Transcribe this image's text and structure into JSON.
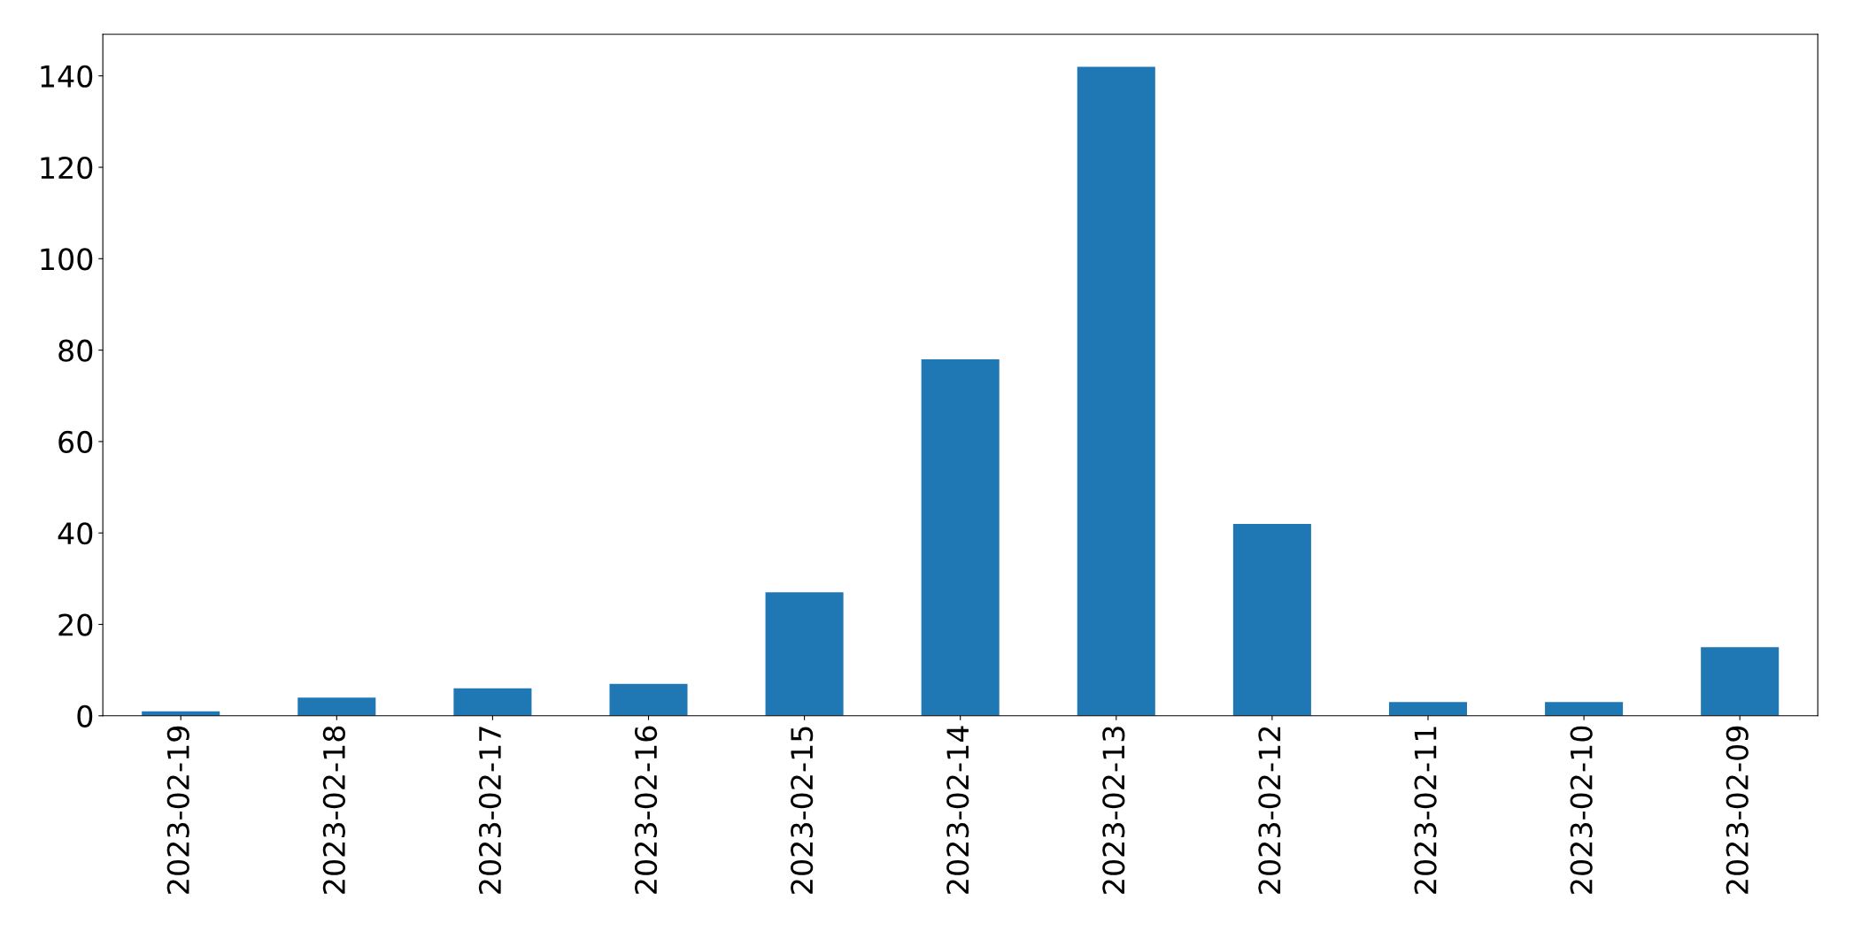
{
  "chart_data": {
    "type": "bar",
    "categories": [
      "2023-02-19",
      "2023-02-18",
      "2023-02-17",
      "2023-02-16",
      "2023-02-15",
      "2023-02-14",
      "2023-02-13",
      "2023-02-12",
      "2023-02-11",
      "2023-02-10",
      "2023-02-09"
    ],
    "values": [
      1,
      4,
      6,
      7,
      27,
      78,
      142,
      42,
      3,
      3,
      15
    ],
    "color": "#1f77b4",
    "ylim": [
      0,
      149.1
    ],
    "yticks": [
      0,
      20,
      40,
      60,
      80,
      100,
      120,
      140
    ],
    "grid": false
  }
}
